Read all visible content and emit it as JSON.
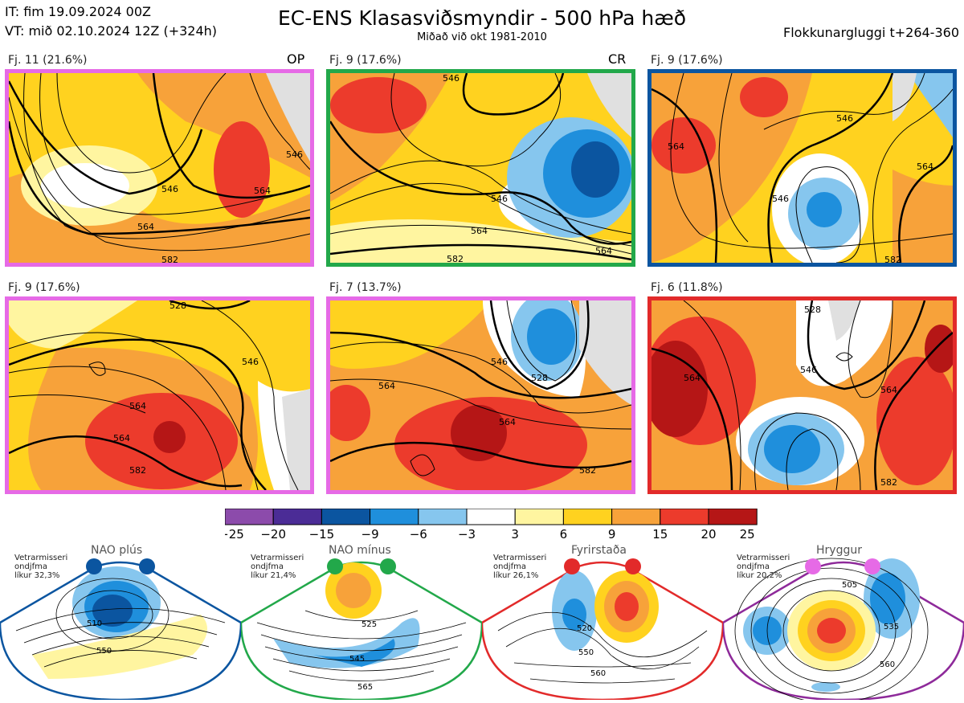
{
  "header": {
    "it_line": "IT: fim 19.09.2024 00Z",
    "vt_line": "VT: mið 02.10.2024 12Z  (+324h)",
    "title": "EC-ENS Klasasviðsmyndir - 500 hPa hæð",
    "subtitle": "Miðað við okt 1981-2010",
    "window": "Flokkunargluggi t+264-360"
  },
  "panels": [
    {
      "label": "Fj. 11 (21.6%)",
      "tag": "OP",
      "border": "#e66ae6",
      "contours": [
        "546",
        "564",
        "582",
        "564",
        "546"
      ]
    },
    {
      "label": "Fj. 9 (17.6%)",
      "tag": "CR",
      "border": "#22a84a",
      "contours": [
        "546",
        "564",
        "582",
        "546",
        "564"
      ]
    },
    {
      "label": "Fj. 9 (17.6%)",
      "tag": "",
      "border": "#0b55a0",
      "contours": [
        "546",
        "564",
        "582",
        "564",
        "546"
      ]
    },
    {
      "label": "Fj. 9 (17.6%)",
      "tag": "",
      "border": "#e66ae6",
      "contours": [
        "528",
        "546",
        "564",
        "582",
        "564"
      ]
    },
    {
      "label": "Fj. 7 (13.7%)",
      "tag": "",
      "border": "#e66ae6",
      "contours": [
        "546",
        "564",
        "528",
        "582",
        "564"
      ]
    },
    {
      "label": "Fj. 6 (11.8%)",
      "tag": "",
      "border": "#e22a2a",
      "contours": [
        "528",
        "546",
        "564",
        "582",
        "564"
      ]
    }
  ],
  "colorbar": {
    "ticks": [
      "−25",
      "−20",
      "−15",
      "−9",
      "−6",
      "−3",
      "3",
      "6",
      "9",
      "15",
      "20",
      "25"
    ],
    "colors": [
      "#8c4bab",
      "#4b2c96",
      "#0b55a0",
      "#1f8fdc",
      "#86c6ee",
      "#ffffff",
      "#fff5a0",
      "#ffd21f",
      "#f7a23a",
      "#ec3b2c",
      "#b51616"
    ]
  },
  "regimes": [
    {
      "name": "NAO plús",
      "info": [
        "Vetrarmisseri",
        "ondjfma",
        "líkur 32,3%"
      ],
      "color": "#0b55a0",
      "contours": [
        "510",
        "550"
      ]
    },
    {
      "name": "NAO mínus",
      "info": [
        "Vetrarmisseri",
        "ondjfma",
        "líkur 21,4%"
      ],
      "color": "#22a84a",
      "contours": [
        "525",
        "545",
        "565"
      ]
    },
    {
      "name": "Fyrirstaða",
      "info": [
        "Vetrarmisseri",
        "ondjfma",
        "líkur 26,1%"
      ],
      "color": "#e22a2a",
      "contours": [
        "520",
        "550",
        "560"
      ]
    },
    {
      "name": "Hryggur",
      "info": [
        "Vetrarmisseri",
        "ondjfma",
        "líkur 20,2%"
      ],
      "color": "#8e2a9a",
      "contours": [
        "505",
        "535",
        "560"
      ]
    }
  ]
}
